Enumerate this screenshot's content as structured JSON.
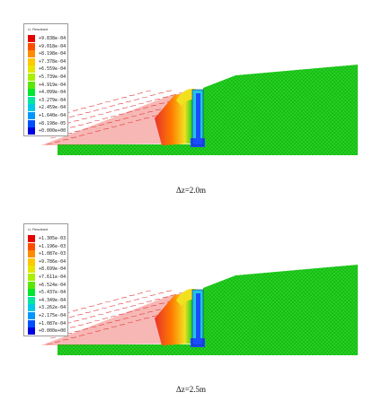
{
  "figures": [
    {
      "legend_title": "U, Resultant",
      "legend_values": [
        "+9.838e-04",
        "+9.018e-04",
        "+8.198e-04",
        "+7.378e-04",
        "+6.559e-04",
        "+5.739e-04",
        "+4.919e-04",
        "+4.099e-04",
        "+3.279e-04",
        "+2.459e-04",
        "+1.640e-04",
        "+8.198e-05",
        "+0.000e+00"
      ],
      "caption": "Δz=2.0m"
    },
    {
      "legend_title": "U, Resultant",
      "legend_values": [
        "+1.305e-03",
        "+1.196e-03",
        "+1.087e-03",
        "+9.786e-04",
        "+8.699e-04",
        "+7.611e-04",
        "+6.524e-04",
        "+5.437e-04",
        "+4.349e-04",
        "+3.262e-04",
        "+2.175e-04",
        "+1.087e-04",
        "+0.000e+00"
      ],
      "caption": "Δz=2.5m"
    }
  ],
  "legend_colors": [
    "#e60000",
    "#ff4d00",
    "#ff8c00",
    "#ffc800",
    "#e6e600",
    "#a8f000",
    "#5ae600",
    "#00e632",
    "#00e6a0",
    "#00c8e6",
    "#0096ff",
    "#0050ff",
    "#0000e0"
  ],
  "model_colors": {
    "soil": "#22d11e",
    "soil_dark": "#0f7f12",
    "wedge_red": "#e8322a",
    "vectors": "#e33b3b",
    "hot": "#ff7a00",
    "yellow": "#f2e020",
    "blue": "#1b4dff",
    "cyan": "#22c3e6"
  }
}
